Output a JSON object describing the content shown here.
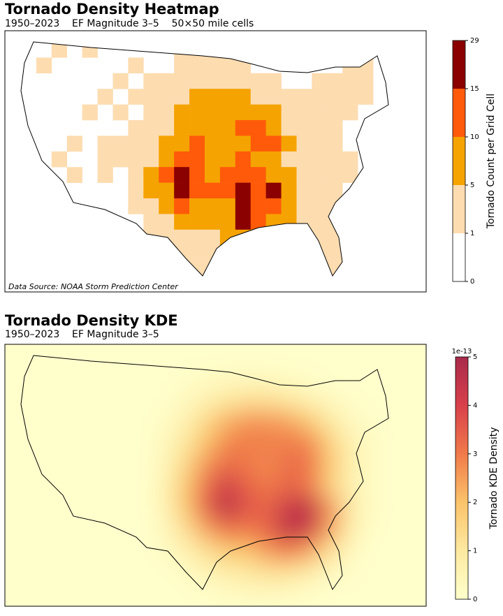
{
  "chart_data": [
    {
      "type": "heatmap",
      "title": "Tornado Density Heatmap",
      "subtitle": "1950–2023    EF Magnitude 3–5    50×50 mile cells",
      "annotation": "Data Source: NOAA Storm Prediction Center",
      "colorbar": {
        "label": "Tornado Count per Grid Cell",
        "ticks": [
          0,
          1,
          5,
          10,
          15,
          29
        ],
        "colors": [
          "#ffffff",
          "#fddcb0",
          "#f5a300",
          "#ff5a0a",
          "#8b0000"
        ]
      },
      "grid": [
        [
          0,
          0,
          1,
          0,
          1,
          0,
          0,
          0,
          0,
          0,
          1,
          1,
          1,
          1,
          0,
          0,
          0,
          0,
          0,
          0,
          0,
          0,
          0,
          0
        ],
        [
          0,
          1,
          0,
          0,
          0,
          0,
          0,
          1,
          0,
          0,
          1,
          2,
          3,
          2,
          1,
          0,
          0,
          0,
          0,
          0,
          0,
          1,
          1,
          0
        ],
        [
          0,
          0,
          0,
          0,
          0,
          0,
          1,
          0,
          1,
          1,
          2,
          3,
          4,
          3,
          2,
          1,
          1,
          0,
          0,
          1,
          1,
          2,
          1,
          0
        ],
        [
          0,
          0,
          0,
          0,
          0,
          1,
          0,
          1,
          1,
          2,
          3,
          5,
          6,
          7,
          6,
          4,
          2,
          2,
          1,
          1,
          2,
          2,
          1,
          0
        ],
        [
          0,
          0,
          0,
          0,
          1,
          0,
          1,
          0,
          2,
          3,
          5,
          8,
          7,
          8,
          9,
          8,
          5,
          3,
          2,
          3,
          2,
          1,
          0,
          0
        ],
        [
          0,
          0,
          0,
          0,
          0,
          0,
          0,
          1,
          3,
          4,
          7,
          9,
          8,
          7,
          10,
          12,
          9,
          4,
          3,
          2,
          2,
          0,
          0,
          0
        ],
        [
          0,
          0,
          0,
          1,
          0,
          1,
          1,
          1,
          3,
          6,
          9,
          11,
          8,
          6,
          9,
          11,
          13,
          6,
          3,
          2,
          1,
          0,
          0,
          0
        ],
        [
          0,
          0,
          1,
          0,
          0,
          1,
          1,
          1,
          4,
          9,
          12,
          10,
          7,
          8,
          10,
          9,
          7,
          4,
          3,
          2,
          2,
          1,
          0,
          0
        ],
        [
          0,
          0,
          0,
          1,
          0,
          1,
          0,
          2,
          6,
          11,
          16,
          13,
          9,
          12,
          14,
          10,
          8,
          5,
          3,
          3,
          2,
          1,
          0,
          0
        ],
        [
          0,
          0,
          0,
          0,
          0,
          0,
          0,
          1,
          5,
          9,
          18,
          12,
          10,
          11,
          16,
          12,
          18,
          8,
          4,
          3,
          2,
          0,
          0,
          0
        ],
        [
          0,
          0,
          0,
          0,
          0,
          0,
          0,
          1,
          3,
          7,
          10,
          8,
          7,
          9,
          20,
          14,
          11,
          6,
          3,
          2,
          1,
          0,
          0,
          0
        ],
        [
          0,
          0,
          0,
          0,
          0,
          0,
          0,
          0,
          2,
          4,
          6,
          5,
          5,
          7,
          25,
          12,
          8,
          5,
          3,
          2,
          1,
          0,
          0,
          0
        ],
        [
          0,
          0,
          0,
          0,
          0,
          0,
          0,
          0,
          1,
          3,
          4,
          3,
          4,
          5,
          6,
          5,
          3,
          3,
          2,
          1,
          2,
          0,
          0,
          0
        ],
        [
          0,
          0,
          0,
          0,
          0,
          0,
          0,
          0,
          1,
          2,
          2,
          3,
          3,
          2,
          2,
          2,
          1,
          1,
          1,
          2,
          2,
          0,
          0,
          0
        ],
        [
          0,
          0,
          0,
          0,
          0,
          0,
          0,
          0,
          0,
          1,
          1,
          2,
          1,
          0,
          0,
          0,
          0,
          0,
          0,
          1,
          1,
          0,
          0,
          0
        ]
      ]
    },
    {
      "type": "kde",
      "title": "Tornado Density KDE",
      "subtitle": "1950–2023    EF Magnitude 3–5",
      "colorbar": {
        "label": "Tornado KDE Density",
        "ticks": [
          0,
          1,
          2,
          3,
          4,
          5
        ],
        "offset": "1e-13",
        "colors": [
          "#ffffcc",
          "#fde9a0",
          "#fbc36a",
          "#f07a4a",
          "#d8404a",
          "#a82a4a"
        ]
      },
      "grid": [
        [
          0,
          0,
          0,
          0,
          0,
          0,
          0,
          0,
          0,
          0,
          0,
          0,
          0,
          0,
          0,
          0,
          0,
          0,
          0,
          0
        ],
        [
          0,
          0,
          0,
          0,
          0,
          0,
          0,
          0,
          0.1,
          0.2,
          0.3,
          0.3,
          0.3,
          0.2,
          0.1,
          0,
          0,
          0,
          0,
          0
        ],
        [
          0,
          0,
          0,
          0,
          0,
          0,
          0,
          0,
          0.3,
          0.6,
          1,
          1.2,
          1.2,
          1,
          0.6,
          0.3,
          0.1,
          0,
          0,
          0
        ],
        [
          0,
          0,
          0,
          0,
          0,
          0,
          0,
          0.2,
          0.6,
          1.4,
          2.2,
          2.6,
          2.6,
          2.4,
          1.8,
          0.9,
          0.3,
          0.1,
          0,
          0
        ],
        [
          0,
          0,
          0,
          0,
          0,
          0,
          0,
          0.3,
          1,
          2,
          2.8,
          3,
          2.9,
          3,
          2.8,
          1.6,
          0.6,
          0.2,
          0,
          0
        ],
        [
          0,
          0,
          0,
          0,
          0,
          0,
          0,
          0.4,
          1.4,
          2.6,
          3.3,
          3,
          2.8,
          3.2,
          3.1,
          1.8,
          0.7,
          0.2,
          0,
          0
        ],
        [
          0,
          0,
          0,
          0,
          0,
          0,
          0,
          0.5,
          1.8,
          3.2,
          4.2,
          3.4,
          3,
          3.4,
          3,
          1.6,
          0.6,
          0.2,
          0,
          0
        ],
        [
          0,
          0,
          0,
          0,
          0,
          0,
          0,
          0.5,
          1.8,
          3.4,
          4.6,
          3.6,
          3.4,
          4.4,
          4.5,
          2.6,
          0.8,
          0.2,
          0,
          0
        ],
        [
          0,
          0,
          0,
          0,
          0,
          0,
          0,
          0.3,
          1.2,
          2.4,
          3.2,
          3,
          3.4,
          4.6,
          4.2,
          2.4,
          0.7,
          0.1,
          0,
          0
        ],
        [
          0,
          0,
          0,
          0,
          0,
          0,
          0,
          0.2,
          0.6,
          1.2,
          1.8,
          2,
          2.6,
          3,
          2.4,
          1.2,
          0.3,
          0,
          0,
          0
        ],
        [
          0,
          0,
          0,
          0,
          0,
          0,
          0,
          0,
          0.2,
          0.5,
          0.8,
          1,
          1.2,
          1.2,
          0.8,
          0.3,
          0.1,
          0,
          0,
          0
        ],
        [
          0,
          0,
          0,
          0,
          0,
          0,
          0,
          0,
          0,
          0.1,
          0.2,
          0.3,
          0.3,
          0.2,
          0.1,
          0,
          0,
          0,
          0,
          0
        ]
      ]
    }
  ]
}
